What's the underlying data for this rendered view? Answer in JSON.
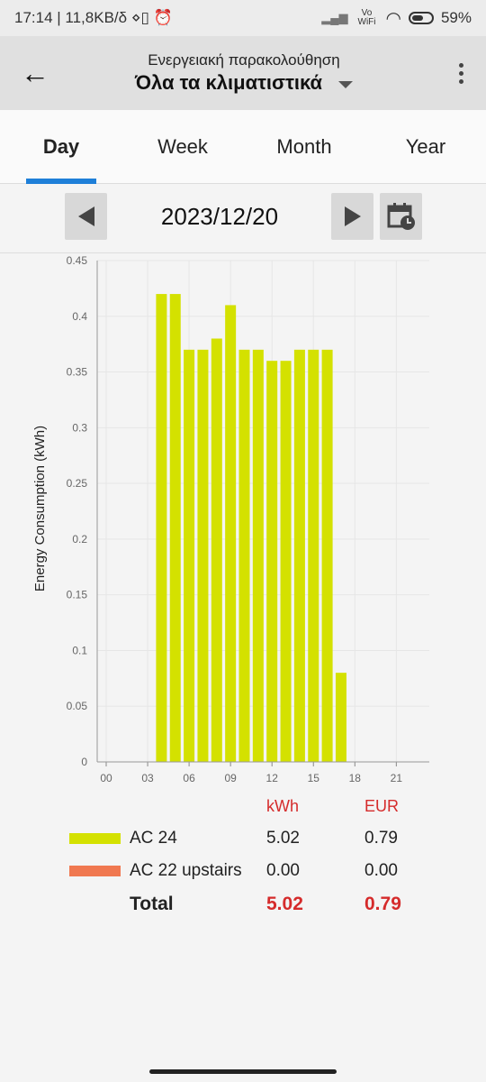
{
  "status_bar": {
    "left": "17:14 | 11,8KB/δ ⋄▯ ⏰",
    "signal": "▂▄▆",
    "vowifi": "Vo WiFi",
    "wifi": "◠",
    "battery_percent": "59%"
  },
  "app_bar": {
    "back_icon": "←",
    "subtitle": "Ενεργειακή παρακολούθηση",
    "title": "Όλα τα κλιματιστικά"
  },
  "tabs": [
    {
      "label": "Day",
      "active": true
    },
    {
      "label": "Week",
      "active": false
    },
    {
      "label": "Month",
      "active": false
    },
    {
      "label": "Year",
      "active": false
    }
  ],
  "date_nav": {
    "date": "2023/12/20"
  },
  "chart_data": {
    "type": "bar",
    "ylabel": "Energy Consumption (kWh)",
    "ylim": [
      0,
      0.45
    ],
    "yticks": [
      "0",
      "0.05",
      "0.1",
      "0.15",
      "0.2",
      "0.25",
      "0.3",
      "0.35",
      "0.4",
      "0.45"
    ],
    "xticks": [
      "00",
      "03",
      "06",
      "09",
      "12",
      "15",
      "18",
      "21"
    ],
    "x_range": [
      0,
      23
    ],
    "grid": true,
    "series": [
      {
        "name": "AC 24",
        "color": "#d4e100",
        "points": [
          {
            "hour": 4,
            "value": 0.42
          },
          {
            "hour": 5,
            "value": 0.42
          },
          {
            "hour": 6,
            "value": 0.37
          },
          {
            "hour": 7,
            "value": 0.37
          },
          {
            "hour": 8,
            "value": 0.38
          },
          {
            "hour": 9,
            "value": 0.41
          },
          {
            "hour": 10,
            "value": 0.37
          },
          {
            "hour": 11,
            "value": 0.37
          },
          {
            "hour": 12,
            "value": 0.36
          },
          {
            "hour": 13,
            "value": 0.36
          },
          {
            "hour": 14,
            "value": 0.37
          },
          {
            "hour": 15,
            "value": 0.37
          },
          {
            "hour": 16,
            "value": 0.37
          },
          {
            "hour": 17,
            "value": 0.08
          }
        ]
      }
    ]
  },
  "summary": {
    "kwh_header": "kWh",
    "eur_header": "EUR",
    "rows": [
      {
        "name": "AC 24",
        "kwh": "5.02",
        "eur": "0.79",
        "color": "#d4e100"
      },
      {
        "name": "AC 22 upstairs",
        "kwh": "0.00",
        "eur": "0.00",
        "color": "#f07850"
      }
    ],
    "total": {
      "label": "Total",
      "kwh": "5.02",
      "eur": "0.79"
    }
  }
}
